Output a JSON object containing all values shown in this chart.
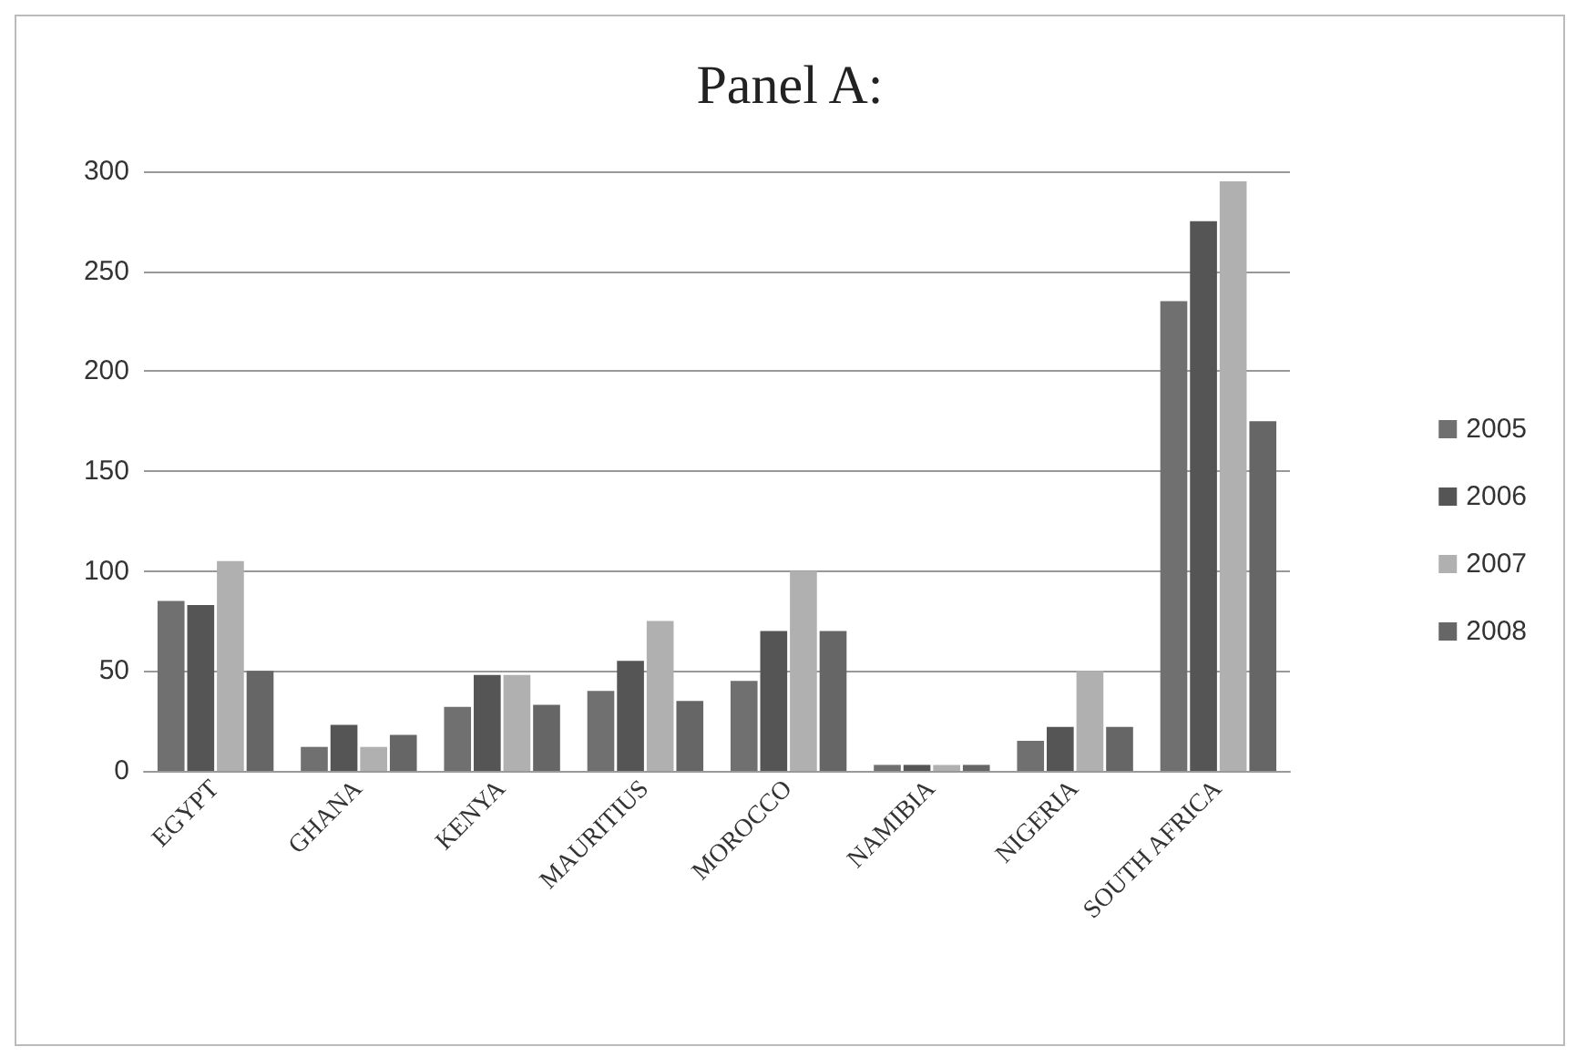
{
  "chart_data": {
    "type": "bar",
    "title": "Panel A:",
    "categories": [
      "EGYPT",
      "GHANA",
      "KENYA",
      "MAURITIUS",
      "MOROCCO",
      "NAMIBIA",
      "NIGERIA",
      "SOUTH AFRICA"
    ],
    "series": [
      {
        "name": "2005",
        "color": "#707070",
        "values": [
          85,
          12,
          32,
          40,
          45,
          3,
          15,
          235
        ]
      },
      {
        "name": "2006",
        "color": "#555555",
        "values": [
          83,
          23,
          48,
          55,
          70,
          3,
          22,
          275
        ]
      },
      {
        "name": "2007",
        "color": "#b0b0b0",
        "values": [
          105,
          12,
          48,
          75,
          100,
          3,
          50,
          295
        ]
      },
      {
        "name": "2008",
        "color": "#666666",
        "values": [
          50,
          18,
          33,
          35,
          70,
          3,
          22,
          175
        ]
      }
    ],
    "ylim": [
      0,
      300
    ],
    "yticks": [
      0,
      50,
      100,
      150,
      200,
      250,
      300
    ],
    "grid": "y",
    "legend": "right"
  }
}
